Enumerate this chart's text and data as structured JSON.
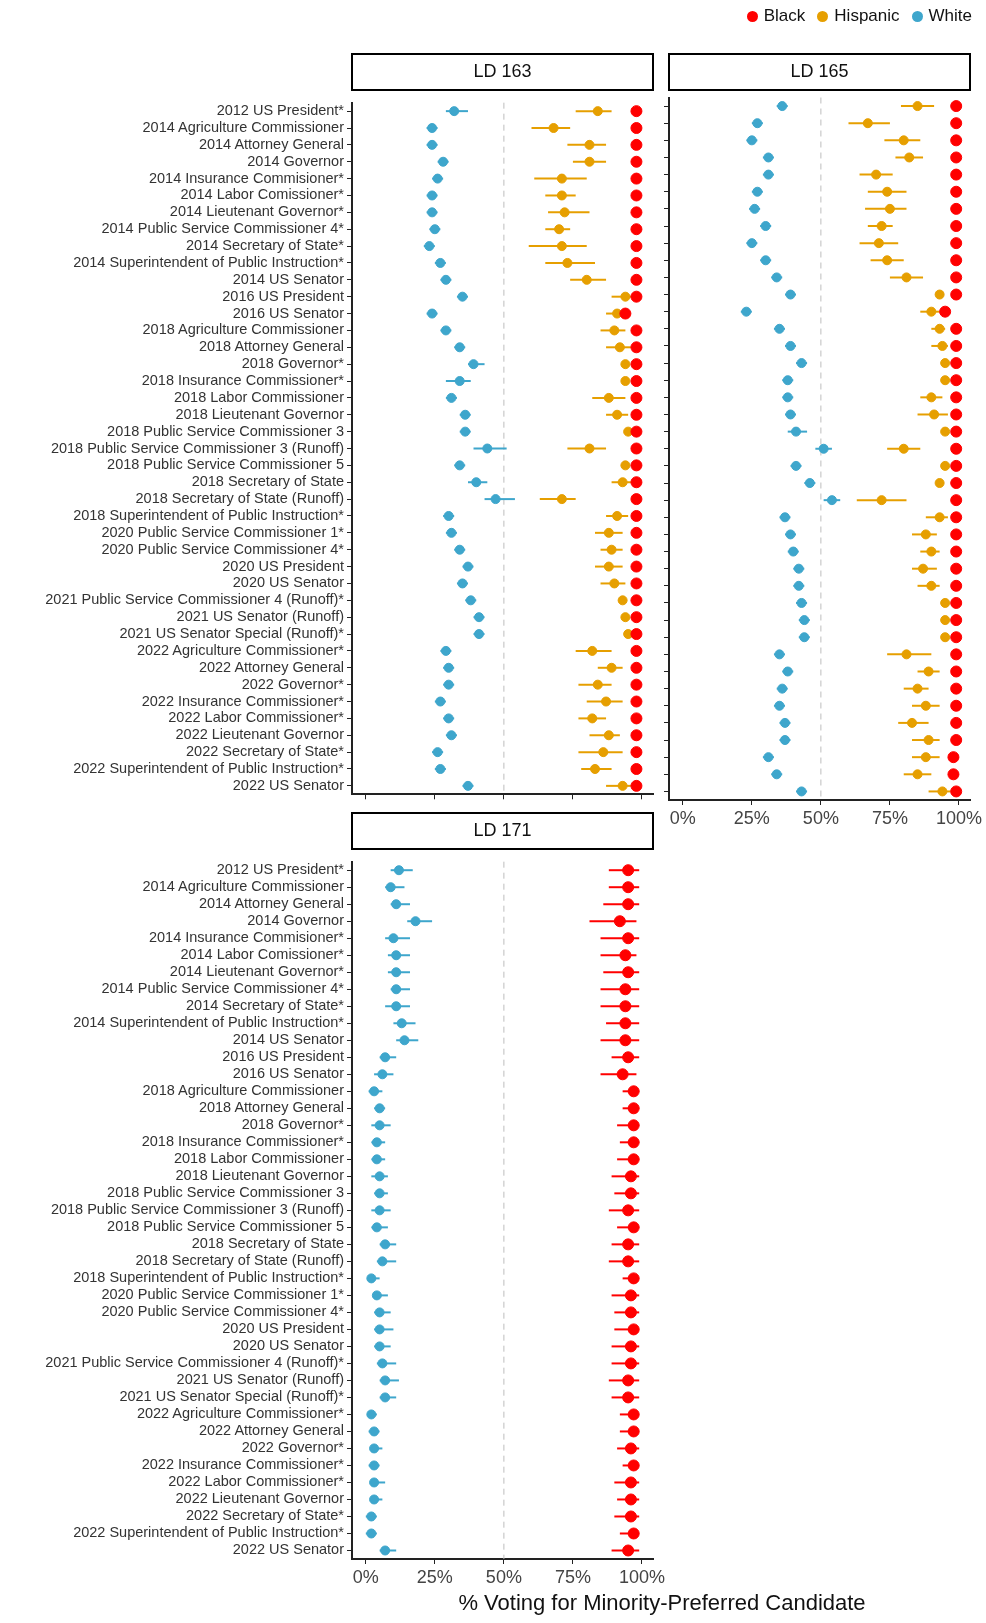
{
  "chart_data": [
    {
      "type": "scatter",
      "title": "LD 163",
      "orientation": "horizontal",
      "marker": "circle",
      "legend": "top right",
      "tick_labels": "y",
      "categories": [
        "2012 US President*",
        "2014 Agriculture Commissioner",
        "2014 Attorney General",
        "2014 Governor",
        "2014 Insurance Commisioner*",
        "2014 Labor Comissioner*",
        "2014 Lieutenant Governor*",
        "2014 Public Service Commissioner 4*",
        "2014 Secretary of State*",
        "2014 Superintendent of Public Instruction*",
        "2014 US Senator",
        "2016 US President",
        "2016 US Senator",
        "2018 Agriculture Commissioner",
        "2018 Attorney General",
        "2018 Governor*",
        "2018 Insurance Commissioner*",
        "2018 Labor Commissioner",
        "2018 Lieutenant Governor",
        "2018 Public Service Commissioner 3",
        "2018 Public Service Commissioner 3 (Runoff)",
        "2018 Public Service Commissioner 5",
        "2018 Secretary of State",
        "2018 Secretary of State (Runoff)",
        "2018 Superintendent of Public Instruction*",
        "2020 Public Service Commissioner 1*",
        "2020 Public Service Commissioner 4*",
        "2020 US President",
        "2020 US Senator",
        "2021 Public Service Commissioner 4 (Runoff)*",
        "2021 US Senator (Runoff)",
        "2021 US Senator Special (Runoff)*",
        "2022 Agriculture Commissioner*",
        "2022 Attorney General",
        "2022 Governor*",
        "2022 Insurance Commissioner*",
        "2022 Labor Commissioner*",
        "2022 Lieutenant Governor",
        "2022 Secretary of State*",
        "2022 Superintendent of Public Instruction*",
        "2022 US Senator"
      ],
      "xlim": [
        -5,
        104
      ],
      "xticks": [
        {
          "value": 0,
          "label": null
        },
        {
          "value": 25,
          "label": null
        },
        {
          "value": 50,
          "label": null
        },
        {
          "value": 75,
          "label": null
        },
        {
          "value": 100,
          "label": null
        }
      ],
      "ref_lines": [
        {
          "axis": "x",
          "value": 50,
          "color": "#bdbdbd",
          "line_style": "dashed"
        }
      ],
      "series": [
        {
          "name": "Black",
          "color": "#ff0000",
          "values": [
            98,
            98,
            98,
            98,
            98,
            98,
            98,
            98,
            98,
            98,
            98,
            98,
            94,
            98,
            98,
            98,
            98,
            98,
            98,
            98,
            98,
            98,
            98,
            98,
            98,
            98,
            98,
            98,
            98,
            98,
            98,
            98,
            98,
            98,
            98,
            98,
            98,
            98,
            98,
            98,
            98
          ]
        },
        {
          "name": "Hispanic",
          "color": "#e69f00",
          "values": [
            84,
            68,
            81,
            81,
            71,
            71,
            72,
            70,
            71,
            73,
            80,
            94,
            91,
            90,
            92,
            94,
            94,
            88,
            91,
            95,
            81,
            94,
            93,
            71,
            91,
            88,
            89,
            88,
            90,
            93,
            94,
            95,
            82,
            89,
            84,
            87,
            82,
            88,
            86,
            83,
            93
          ],
          "errors": [
            [
              76,
              89
            ],
            [
              60,
              74
            ],
            [
              73,
              87
            ],
            [
              75,
              87
            ],
            [
              61,
              80
            ],
            [
              65,
              76
            ],
            [
              66,
              81
            ],
            [
              65,
              74
            ],
            [
              59,
              80
            ],
            [
              65,
              83
            ],
            [
              74,
              87
            ],
            [
              89,
              97
            ],
            [
              87,
              91
            ],
            [
              85,
              94
            ],
            [
              87,
              96
            ],
            null,
            null,
            [
              82,
              94
            ],
            [
              87,
              95
            ],
            null,
            [
              73,
              87
            ],
            null,
            [
              89,
              96
            ],
            [
              63,
              76
            ],
            [
              87,
              95
            ],
            [
              83,
              93
            ],
            [
              85,
              93
            ],
            [
              83,
              93
            ],
            [
              85,
              94
            ],
            null,
            null,
            null,
            [
              76,
              89
            ],
            [
              84,
              93
            ],
            [
              77,
              89
            ],
            [
              80,
              93
            ],
            [
              77,
              87
            ],
            [
              81,
              92
            ],
            [
              77,
              93
            ],
            [
              78,
              89
            ],
            [
              87,
              96
            ]
          ]
        },
        {
          "name": "White",
          "color": "#3ea6cc",
          "values": [
            32,
            24,
            24,
            28,
            26,
            24,
            24,
            25,
            23,
            27,
            29,
            35,
            24,
            29,
            34,
            39,
            34,
            31,
            36,
            36,
            44,
            34,
            40,
            47,
            30,
            31,
            34,
            37,
            35,
            38,
            41,
            41,
            29,
            30,
            30,
            27,
            30,
            31,
            26,
            27,
            37
          ],
          "errors": [
            [
              29,
              37
            ],
            2,
            2,
            2,
            2,
            2,
            2,
            2,
            2,
            2,
            2,
            2,
            2,
            2,
            2,
            [
              37,
              43
            ],
            [
              29,
              38
            ],
            2,
            2,
            2,
            [
              39,
              51
            ],
            2,
            [
              37,
              44
            ],
            [
              43,
              54
            ],
            2,
            2,
            2,
            2,
            2,
            2,
            2,
            2,
            2,
            2,
            2,
            2,
            2,
            2,
            2,
            2,
            2
          ]
        }
      ]
    },
    {
      "type": "scatter",
      "title": "LD 165",
      "orientation": "horizontal",
      "marker": "circle",
      "tick_labels": "x",
      "categories": [
        null,
        null,
        null,
        null,
        null,
        null,
        null,
        null,
        null,
        null,
        null,
        null,
        null,
        null,
        null,
        null,
        null,
        null,
        null,
        null,
        null,
        null,
        null,
        null,
        null,
        null,
        null,
        null,
        null,
        null,
        null,
        null,
        null,
        null,
        null,
        null,
        null,
        null,
        null,
        null,
        null
      ],
      "xlim": [
        -5,
        104
      ],
      "xticks": [
        {
          "value": 0,
          "label": "0%"
        },
        {
          "value": 25,
          "label": "25%"
        },
        {
          "value": 50,
          "label": "50%"
        },
        {
          "value": 75,
          "label": "75%"
        },
        {
          "value": 100,
          "label": "100%"
        }
      ],
      "ref_lines": [
        {
          "axis": "x",
          "value": 50,
          "color": "#bdbdbd",
          "line_style": "dashed"
        }
      ],
      "series": [
        {
          "color": "#ff0000",
          "values": [
            99,
            99,
            99,
            99,
            99,
            99,
            99,
            99,
            99,
            99,
            99,
            99,
            95,
            99,
            99,
            99,
            99,
            99,
            99,
            99,
            99,
            99,
            99,
            99,
            99,
            99,
            99,
            99,
            99,
            99,
            99,
            99,
            99,
            99,
            99,
            99,
            99,
            99,
            98,
            98,
            99
          ]
        },
        {
          "color": "#e69f00",
          "values": [
            85,
            67,
            80,
            82,
            70,
            74,
            75,
            72,
            71,
            74,
            81,
            93,
            90,
            93,
            94,
            95,
            95,
            90,
            91,
            95,
            80,
            95,
            93,
            72,
            93,
            88,
            90,
            87,
            90,
            95,
            95,
            95,
            81,
            89,
            85,
            88,
            83,
            89,
            88,
            85,
            94
          ],
          "errors": [
            [
              79,
              91
            ],
            [
              60,
              75
            ],
            [
              73,
              86
            ],
            [
              77,
              87
            ],
            [
              64,
              76
            ],
            [
              67,
              81
            ],
            [
              66,
              81
            ],
            [
              67,
              76
            ],
            [
              64,
              78
            ],
            [
              68,
              80
            ],
            [
              75,
              87
            ],
            null,
            [
              86,
              93
            ],
            [
              90,
              95
            ],
            [
              90,
              96
            ],
            null,
            null,
            [
              86,
              94
            ],
            [
              85,
              96
            ],
            null,
            [
              74,
              86
            ],
            null,
            null,
            [
              63,
              81
            ],
            [
              88,
              96
            ],
            [
              83,
              92
            ],
            [
              86,
              93
            ],
            [
              83,
              92
            ],
            [
              85,
              93
            ],
            null,
            null,
            null,
            [
              74,
              90
            ],
            [
              85,
              93
            ],
            [
              80,
              89
            ],
            [
              83,
              93
            ],
            [
              78,
              89
            ],
            [
              83,
              93
            ],
            [
              83,
              93
            ],
            [
              80,
              90
            ],
            [
              89,
              97
            ]
          ]
        },
        {
          "color": "#3ea6cc",
          "values": [
            36,
            27,
            25,
            31,
            31,
            27,
            26,
            30,
            25,
            30,
            34,
            39,
            23,
            35,
            39,
            43,
            38,
            38,
            39,
            41,
            51,
            41,
            46,
            54,
            37,
            39,
            40,
            42,
            42,
            43,
            44,
            44,
            35,
            38,
            36,
            35,
            37,
            37,
            31,
            34,
            43
          ],
          "errors": [
            2,
            2,
            2,
            2,
            2,
            2,
            2,
            2,
            2,
            2,
            2,
            2,
            2,
            2,
            2,
            2,
            2,
            2,
            2,
            [
              38,
              45
            ],
            [
              48,
              54
            ],
            2,
            2,
            [
              51,
              57
            ],
            2,
            2,
            2,
            2,
            2,
            2,
            2,
            2,
            2,
            2,
            2,
            2,
            2,
            2,
            2,
            2,
            2
          ]
        }
      ]
    },
    {
      "type": "scatter",
      "title": "LD 171",
      "orientation": "horizontal",
      "marker": "circle",
      "xlabel": "% Voting for Minority-Preferred Candidate",
      "categories": [
        "2012 US President*",
        "2014 Agriculture Commissioner",
        "2014 Attorney General",
        "2014 Governor",
        "2014 Insurance Commisioner*",
        "2014 Labor Comissioner*",
        "2014 Lieutenant Governor*",
        "2014 Public Service Commissioner 4*",
        "2014 Secretary of State*",
        "2014 Superintendent of Public Instruction*",
        "2014 US Senator",
        "2016 US President",
        "2016 US Senator",
        "2018 Agriculture Commissioner",
        "2018 Attorney General",
        "2018 Governor*",
        "2018 Insurance Commissioner*",
        "2018 Labor Commissioner",
        "2018 Lieutenant Governor",
        "2018 Public Service Commissioner 3",
        "2018 Public Service Commissioner 3 (Runoff)",
        "2018 Public Service Commissioner 5",
        "2018 Secretary of State",
        "2018 Secretary of State (Runoff)",
        "2018 Superintendent of Public Instruction*",
        "2020 Public Service Commissioner 1*",
        "2020 Public Service Commissioner 4*",
        "2020 US President",
        "2020 US Senator",
        "2021 Public Service Commissioner 4 (Runoff)*",
        "2021 US Senator (Runoff)",
        "2021 US Senator Special (Runoff)*",
        "2022 Agriculture Commissioner*",
        "2022 Attorney General",
        "2022 Governor*",
        "2022 Insurance Commissioner*",
        "2022 Labor Commissioner*",
        "2022 Lieutenant Governor",
        "2022 Secretary of State*",
        "2022 Superintendent of Public Instruction*",
        "2022 US Senator"
      ],
      "xlim": [
        -5,
        104
      ],
      "xticks": [
        {
          "value": 0,
          "label": "0%"
        },
        {
          "value": 25,
          "label": "25%"
        },
        {
          "value": 50,
          "label": "50%"
        },
        {
          "value": 75,
          "label": "75%"
        },
        {
          "value": 100,
          "label": "100%"
        }
      ],
      "ref_lines": [
        {
          "axis": "x",
          "value": 50,
          "color": "#bdbdbd",
          "line_style": "dashed"
        }
      ],
      "series": [
        {
          "color": "#ff0000",
          "values": [
            95,
            95,
            95,
            92,
            95,
            94,
            95,
            94,
            94,
            94,
            94,
            95,
            93,
            97,
            97,
            97,
            97,
            97,
            96,
            96,
            95,
            97,
            95,
            95,
            97,
            96,
            96,
            97,
            96,
            96,
            95,
            95,
            97,
            97,
            96,
            97,
            96,
            96,
            96,
            97,
            95
          ],
          "errors": [
            [
              88,
              99
            ],
            [
              88,
              99
            ],
            [
              86,
              99
            ],
            [
              81,
              98
            ],
            [
              85,
              99
            ],
            [
              85,
              98
            ],
            [
              86,
              99
            ],
            [
              85,
              99
            ],
            [
              85,
              99
            ],
            [
              87,
              99
            ],
            [
              85,
              99
            ],
            [
              89,
              99
            ],
            [
              85,
              98
            ],
            [
              93,
              99
            ],
            [
              93,
              99
            ],
            [
              91,
              99
            ],
            [
              92,
              99
            ],
            [
              91,
              99
            ],
            [
              89,
              99
            ],
            [
              90,
              99
            ],
            [
              88,
              99
            ],
            [
              91,
              99
            ],
            [
              89,
              99
            ],
            [
              88,
              99
            ],
            [
              93,
              99
            ],
            [
              89,
              99
            ],
            [
              90,
              99
            ],
            [
              90,
              99
            ],
            [
              89,
              99
            ],
            [
              89,
              99
            ],
            [
              88,
              99
            ],
            [
              89,
              99
            ],
            [
              92,
              99
            ],
            [
              92,
              99
            ],
            [
              91,
              99
            ],
            [
              93,
              99
            ],
            [
              90,
              99
            ],
            [
              91,
              99
            ],
            [
              90,
              99
            ],
            [
              92,
              99
            ],
            [
              89,
              99
            ]
          ]
        },
        {
          "color": "#3ea6cc",
          "values": [
            12,
            9,
            11,
            18,
            10,
            11,
            11,
            11,
            11,
            13,
            14,
            7,
            6,
            3,
            5,
            5,
            4,
            4,
            5,
            5,
            5,
            4,
            7,
            6,
            2,
            4,
            5,
            5,
            5,
            6,
            7,
            7,
            2,
            3,
            3,
            3,
            3,
            3,
            2,
            2,
            7
          ],
          "errors": [
            [
              9,
              17
            ],
            [
              7,
              14
            ],
            [
              9,
              16
            ],
            [
              15,
              24
            ],
            [
              7,
              16
            ],
            [
              8,
              16
            ],
            [
              8,
              16
            ],
            [
              9,
              16
            ],
            [
              7,
              16
            ],
            [
              10,
              18
            ],
            [
              11,
              19
            ],
            [
              5,
              11
            ],
            [
              3,
              10
            ],
            [
              1,
              6
            ],
            [
              3,
              7
            ],
            [
              2,
              9
            ],
            [
              2,
              7
            ],
            [
              2,
              7
            ],
            [
              2,
              8
            ],
            [
              3,
              8
            ],
            [
              2,
              9
            ],
            [
              2,
              8
            ],
            [
              5,
              11
            ],
            [
              4,
              11
            ],
            [
              1,
              5
            ],
            [
              3,
              8
            ],
            [
              3,
              9
            ],
            [
              3,
              10
            ],
            [
              3,
              9
            ],
            [
              4,
              11
            ],
            [
              5,
              12
            ],
            [
              5,
              11
            ],
            [
              1,
              4
            ],
            [
              1,
              5
            ],
            [
              2,
              6
            ],
            [
              1,
              5
            ],
            [
              2,
              7
            ],
            [
              2,
              6
            ],
            [
              0,
              4
            ],
            [
              0,
              4
            ],
            [
              5,
              11
            ]
          ]
        }
      ]
    }
  ]
}
